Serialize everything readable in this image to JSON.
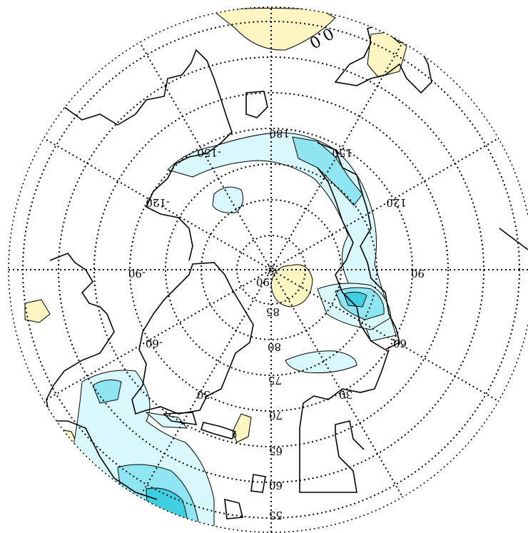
{
  "map": {
    "projection": "polar-stereographic-north",
    "orientation": "rotated 180 degrees (labels upside down)",
    "latitude_labels": [
      "90",
      "85",
      "80",
      "75",
      "70",
      "65",
      "60",
      "55"
    ],
    "longitude_labels": [
      "180",
      "150",
      "120",
      "90",
      "60",
      "30",
      "-30",
      "-60",
      "-90",
      "-120",
      "-150"
    ],
    "contour_labels": [
      "0.0",
      "0"
    ],
    "colors": {
      "positive_anomaly": "#fdf6c3",
      "negative_light": "#d9f8fb",
      "negative_medium": "#8fe6f2",
      "negative_strong": "#3fcfe0",
      "coastline": "#000000",
      "graticule": "#000000"
    }
  }
}
